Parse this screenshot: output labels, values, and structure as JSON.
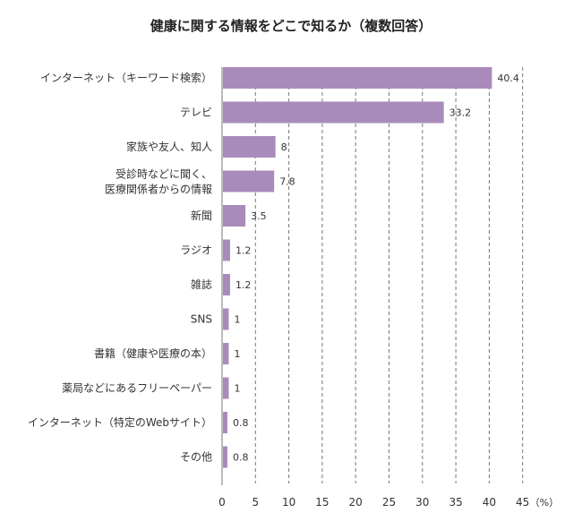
{
  "chart_data": {
    "type": "bar",
    "orientation": "horizontal",
    "title": "健康に関する情報をどこで知るか（複数回答）",
    "unit_label": "（%）",
    "categories": [
      "インターネット（キーワード検索）",
      "テレビ",
      "家族や友人、知人",
      "受診時などに聞く、\n医療関係者からの情報",
      "新聞",
      "ラジオ",
      "雑誌",
      "SNS",
      "書籍（健康や医療の本）",
      "薬局などにあるフリーペーパー",
      "インターネット（特定のWebサイト）",
      "その他"
    ],
    "values": [
      40.4,
      33.2,
      8,
      7.8,
      3.5,
      1.2,
      1.2,
      1,
      1,
      1,
      0.8,
      0.8
    ],
    "value_labels": [
      "40.4",
      "33.2",
      "8",
      "7.8",
      "3.5",
      "1.2",
      "1.2",
      "1",
      "1",
      "1",
      "0.8",
      "0.8"
    ],
    "xlim": [
      0,
      45
    ],
    "xticks": [
      0,
      5,
      10,
      15,
      20,
      25,
      30,
      35,
      40,
      45
    ],
    "grid": "vertical dashed",
    "bar_color": "#a98bbb"
  }
}
